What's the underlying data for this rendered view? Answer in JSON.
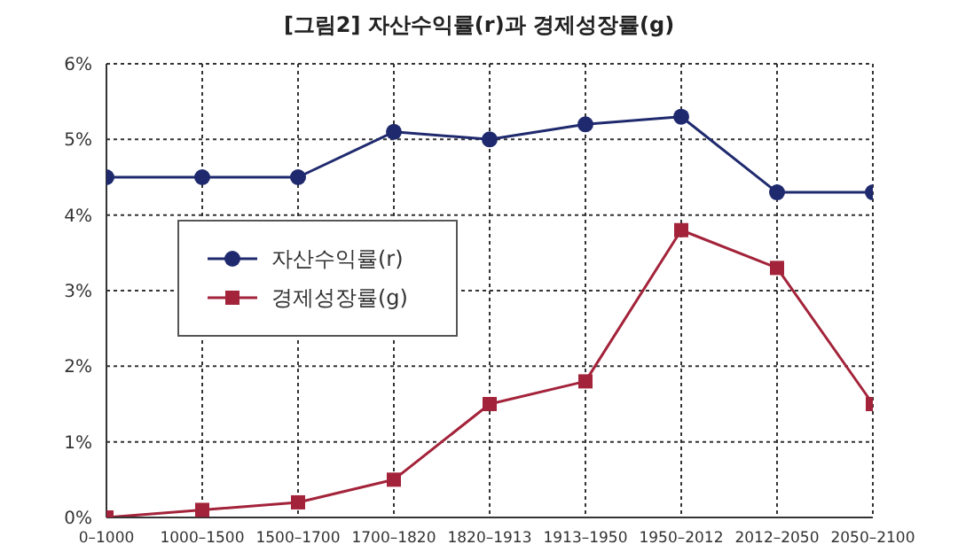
{
  "chart_data": {
    "type": "line",
    "title": "[그림2] 자산수익률(r)과 경제성장률(g)",
    "categories": [
      "0–1000",
      "1000–1500",
      "1500–1700",
      "1700–1820",
      "1820–1913",
      "1913–1950",
      "1950–2012",
      "2012–2050",
      "2050–2100"
    ],
    "series": [
      {
        "name": "자산수익률(r)",
        "color": "#1f2a6e",
        "marker": "circle",
        "values": [
          4.5,
          4.5,
          4.5,
          5.1,
          5.0,
          5.2,
          5.3,
          4.3,
          4.3
        ]
      },
      {
        "name": "경제성장률(g)",
        "color": "#a3233a",
        "marker": "square",
        "values": [
          0.0,
          0.1,
          0.2,
          0.5,
          1.5,
          1.8,
          3.8,
          3.3,
          1.5
        ]
      }
    ],
    "ylim": [
      0,
      6
    ],
    "yticks": [
      {
        "value": 0,
        "label": "0%"
      },
      {
        "value": 1,
        "label": "1%"
      },
      {
        "value": 2,
        "label": "2%"
      },
      {
        "value": 3,
        "label": "3%"
      },
      {
        "value": 4,
        "label": "4%"
      },
      {
        "value": 5,
        "label": "5%"
      },
      {
        "value": 6,
        "label": "6%"
      }
    ],
    "grid": true,
    "legend": "center left"
  }
}
